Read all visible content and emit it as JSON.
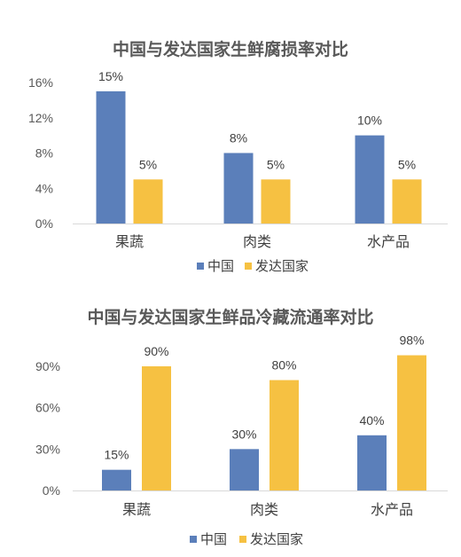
{
  "chart_data": [
    {
      "type": "bar",
      "title": "中国与发达国家生鲜腐损率对比",
      "categories": [
        "果蔬",
        "肉类",
        "水产品"
      ],
      "ylim": [
        0,
        16
      ],
      "yticks": [
        0,
        4,
        8,
        12,
        16
      ],
      "y_unit": "%",
      "series": [
        {
          "name": "中国",
          "color": "#5b7fba",
          "values": [
            15,
            8,
            10
          ]
        },
        {
          "name": "发达国家",
          "color": "#f6c142",
          "values": [
            5,
            5,
            5
          ]
        }
      ],
      "legend": "bottom",
      "grid": false
    },
    {
      "type": "bar",
      "title": "中国与发达国家生鲜品冷藏流通率对比",
      "categories": [
        "果蔬",
        "肉类",
        "水产品"
      ],
      "ylim": [
        0,
        90
      ],
      "yticks": [
        0,
        30,
        60,
        90
      ],
      "y_unit": "%",
      "series": [
        {
          "name": "中国",
          "color": "#5b7fba",
          "values": [
            15,
            30,
            40
          ]
        },
        {
          "name": "发达国家",
          "color": "#f6c142",
          "values": [
            90,
            80,
            98
          ]
        }
      ],
      "legend": "bottom",
      "grid": false
    }
  ]
}
